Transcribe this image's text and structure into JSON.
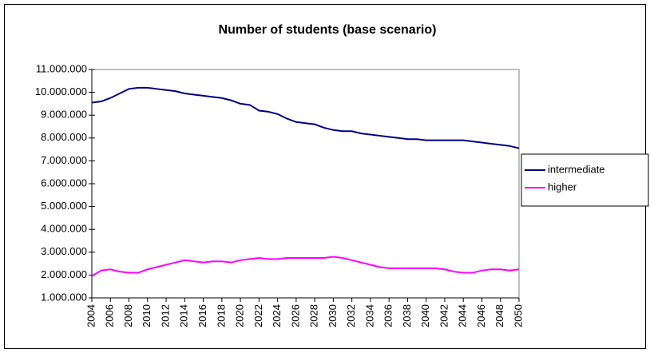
{
  "chart_data": {
    "type": "line",
    "title": "Number of students (base scenario)",
    "x": [
      2004,
      2005,
      2006,
      2007,
      2008,
      2009,
      2010,
      2011,
      2012,
      2013,
      2014,
      2015,
      2016,
      2017,
      2018,
      2019,
      2020,
      2021,
      2022,
      2023,
      2024,
      2025,
      2026,
      2027,
      2028,
      2029,
      2030,
      2031,
      2032,
      2033,
      2034,
      2035,
      2036,
      2037,
      2038,
      2039,
      2040,
      2041,
      2042,
      2043,
      2044,
      2045,
      2046,
      2047,
      2048,
      2049,
      2050
    ],
    "series": [
      {
        "name": "intermediate",
        "color": "#000080",
        "values": [
          9550000,
          9600000,
          9750000,
          9950000,
          10150000,
          10200000,
          10200000,
          10150000,
          10100000,
          10050000,
          9950000,
          9900000,
          9850000,
          9800000,
          9750000,
          9650000,
          9500000,
          9450000,
          9200000,
          9150000,
          9050000,
          8850000,
          8700000,
          8650000,
          8600000,
          8450000,
          8350000,
          8300000,
          8300000,
          8200000,
          8150000,
          8100000,
          8050000,
          8000000,
          7950000,
          7950000,
          7900000,
          7900000,
          7900000,
          7900000,
          7900000,
          7850000,
          7800000,
          7750000,
          7700000,
          7650000,
          7550000
        ]
      },
      {
        "name": "higher",
        "color": "#ff00ff",
        "values": [
          1950000,
          2200000,
          2250000,
          2150000,
          2100000,
          2100000,
          2250000,
          2350000,
          2450000,
          2550000,
          2650000,
          2600000,
          2550000,
          2600000,
          2600000,
          2550000,
          2650000,
          2700000,
          2750000,
          2700000,
          2700000,
          2750000,
          2750000,
          2750000,
          2750000,
          2750000,
          2800000,
          2750000,
          2650000,
          2550000,
          2450000,
          2350000,
          2300000,
          2300000,
          2300000,
          2300000,
          2300000,
          2300000,
          2250000,
          2150000,
          2100000,
          2100000,
          2200000,
          2250000,
          2250000,
          2200000,
          2250000
        ]
      }
    ],
    "xlim": [
      2004,
      2050
    ],
    "xticks": [
      2004,
      2006,
      2008,
      2010,
      2012,
      2014,
      2016,
      2018,
      2020,
      2022,
      2024,
      2026,
      2028,
      2030,
      2032,
      2034,
      2036,
      2038,
      2040,
      2042,
      2044,
      2046,
      2048,
      2050
    ],
    "ylim": [
      1000000,
      11000000
    ],
    "yticks": [
      {
        "value": 1000000,
        "label": "1.000.000"
      },
      {
        "value": 2000000,
        "label": "2.000.000"
      },
      {
        "value": 3000000,
        "label": "3.000.000"
      },
      {
        "value": 4000000,
        "label": "4.000.000"
      },
      {
        "value": 5000000,
        "label": "5.000.000"
      },
      {
        "value": 6000000,
        "label": "6.000.000"
      },
      {
        "value": 7000000,
        "label": "7.000.000"
      },
      {
        "value": 8000000,
        "label": "8.000.000"
      },
      {
        "value": 9000000,
        "label": "9.000.000"
      },
      {
        "value": 10000000,
        "label": "10.000.000"
      },
      {
        "value": 11000000,
        "label": "11.000.000"
      }
    ],
    "legend": "right"
  }
}
